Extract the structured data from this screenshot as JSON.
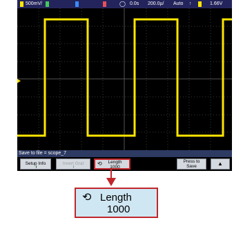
{
  "status": {
    "ch1_scale": "500mV/",
    "time_delay": "0.0s",
    "time_scale": "200.0µ/",
    "trigger_mode": "Auto",
    "trigger_level": "1.66V"
  },
  "save_line": "Save to file = scope_7",
  "softkeys": {
    "setup_info": "Setup Info",
    "invert_grat": "Invert Grat",
    "length_label": "Length",
    "length_value": "1000",
    "press_to": "Press to",
    "save": "Save"
  },
  "callout": {
    "label": "Length",
    "value": "1000"
  },
  "colors": {
    "trace": "#ffe600",
    "status_bar": "#24245c",
    "highlight": "#c0262a",
    "callout_bg": "#cfe7f3"
  }
}
